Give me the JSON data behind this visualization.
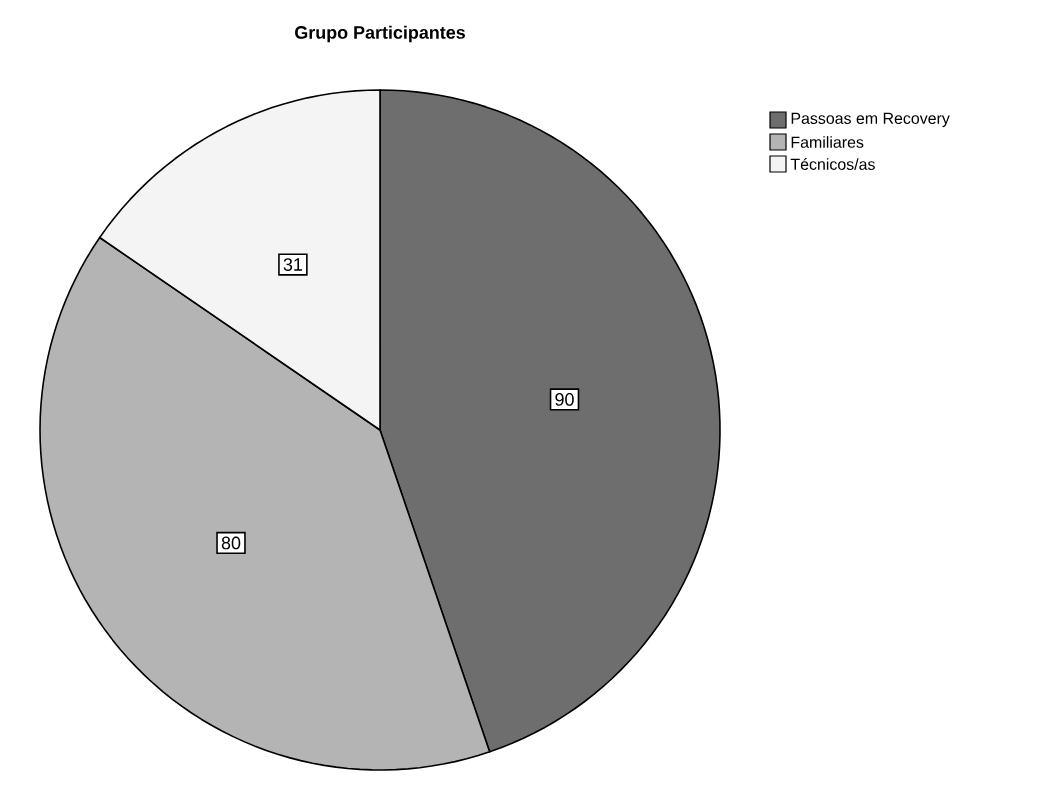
{
  "chart_data": {
    "type": "pie",
    "title": "Grupo Participantes",
    "categories": [
      "Passoas em Recovery",
      "Familiares",
      "Técnicos/as"
    ],
    "values": [
      90,
      80,
      31
    ],
    "colors": [
      "#6e6e6e",
      "#b4b4b4",
      "#f4f4f4"
    ],
    "data_labels": true,
    "legend": "top right"
  }
}
